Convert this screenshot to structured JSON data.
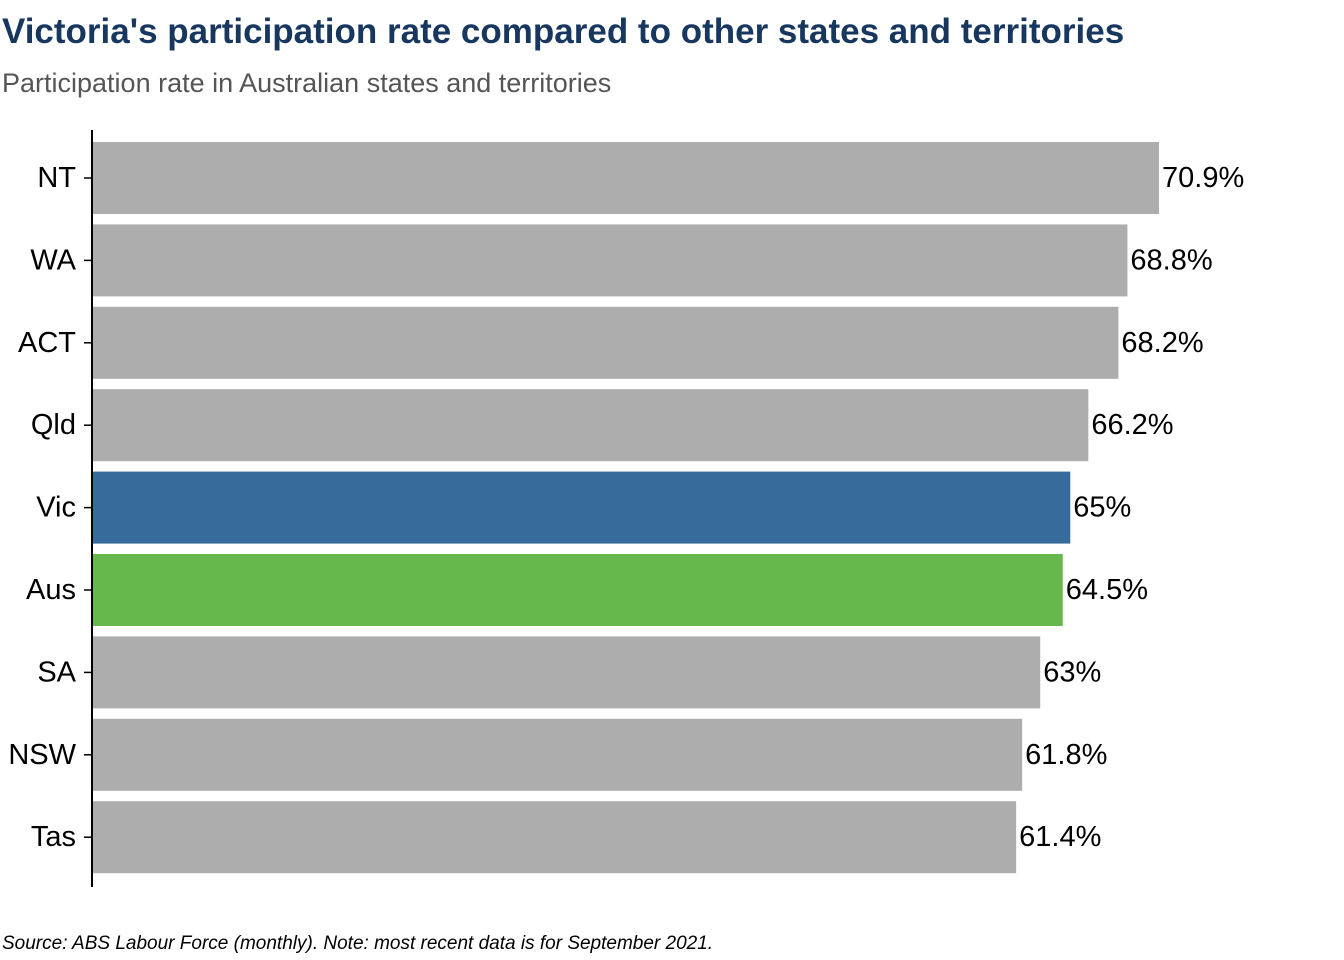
{
  "title": "Victoria's participation rate compared to other states and territories",
  "subtitle": "Participation rate in Australian states and territories",
  "caption": "Source: ABS Labour Force (monthly). Note: most recent data is for September 2021.",
  "colors": {
    "default_bar": "#adadad",
    "highlight_vic": "#376b9b",
    "highlight_aus": "#66b84d",
    "title": "#17375e",
    "subtitle": "#555555"
  },
  "chart_data": {
    "type": "bar",
    "orientation": "horizontal",
    "categories": [
      "NT",
      "WA",
      "ACT",
      "Qld",
      "Vic",
      "Aus",
      "SA",
      "NSW",
      "Tas"
    ],
    "values": [
      70.9,
      68.8,
      68.2,
      66.2,
      65.0,
      64.5,
      63.0,
      61.8,
      61.4
    ],
    "data_labels": [
      "70.9%",
      "68.8%",
      "68.2%",
      "66.2%",
      "65%",
      "64.5%",
      "63%",
      "61.8%",
      "61.4%"
    ],
    "highlight": {
      "Vic": "#376b9b",
      "Aus": "#66b84d"
    },
    "xlim": [
      0,
      80
    ],
    "xlabel": "",
    "ylabel": "",
    "grid": false,
    "legend": "none"
  }
}
